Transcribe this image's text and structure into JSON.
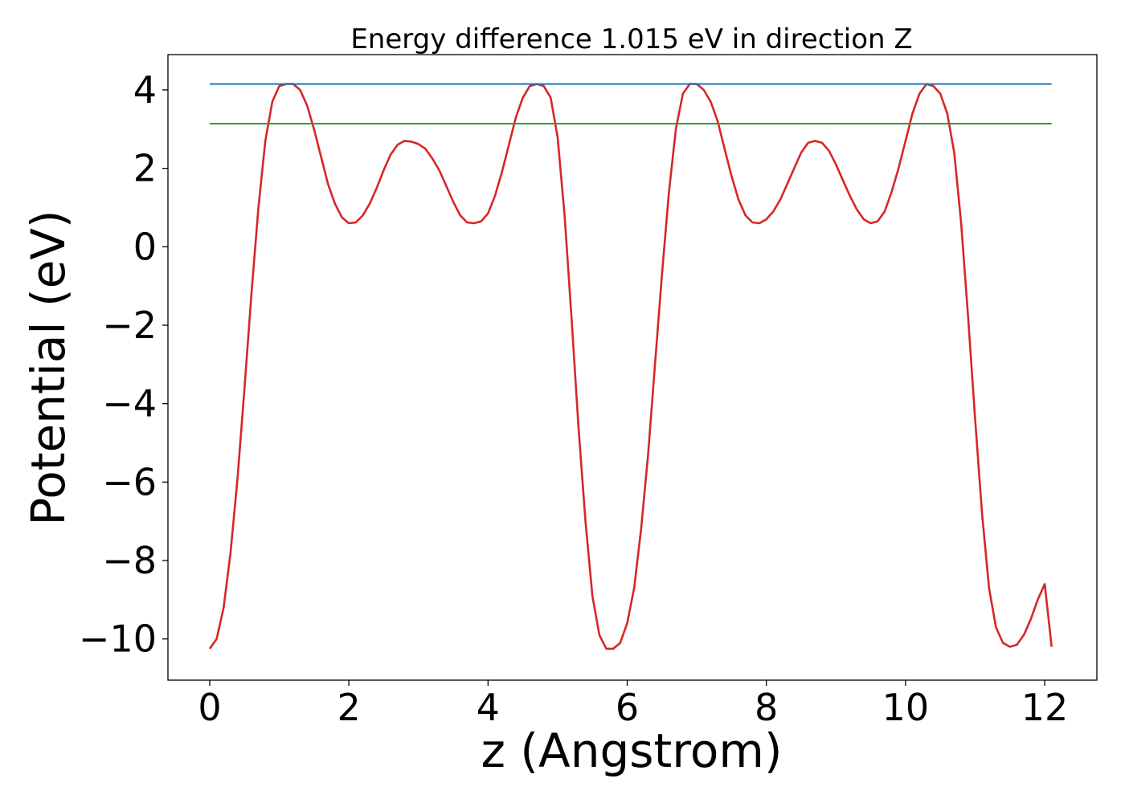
{
  "chart_data": {
    "type": "line",
    "title": "Energy difference 1.015 eV in direction Z",
    "xlabel": "z (Angstrom)",
    "ylabel": "Potential (eV)",
    "xlim": [
      -0.6,
      12.75
    ],
    "ylim": [
      -11.05,
      4.9
    ],
    "xticks": [
      0,
      2,
      4,
      6,
      8,
      10,
      12
    ],
    "xtick_labels": [
      "0",
      "2",
      "4",
      "6",
      "8",
      "10",
      "12"
    ],
    "yticks": [
      -10,
      -8,
      -6,
      -4,
      -2,
      0,
      2,
      4
    ],
    "ytick_labels": [
      "−10",
      "−8",
      "−6",
      "−4",
      "−2",
      "0",
      "2",
      "4"
    ],
    "grid": false,
    "legend": "none",
    "series": [
      {
        "color": "#d62728",
        "x": [
          0.0,
          0.1,
          0.2,
          0.3,
          0.4,
          0.5,
          0.6,
          0.7,
          0.8,
          0.9,
          1.0,
          1.1,
          1.2,
          1.3,
          1.4,
          1.5,
          1.6,
          1.7,
          1.8,
          1.9,
          2.0,
          2.1,
          2.2,
          2.3,
          2.4,
          2.5,
          2.6,
          2.7,
          2.8,
          2.9,
          3.0,
          3.1,
          3.2,
          3.3,
          3.4,
          3.5,
          3.6,
          3.7,
          3.8,
          3.9,
          4.0,
          4.1,
          4.2,
          4.3,
          4.4,
          4.5,
          4.6,
          4.7,
          4.8,
          4.9,
          5.0,
          5.1,
          5.2,
          5.3,
          5.4,
          5.5,
          5.6,
          5.7,
          5.8,
          5.9,
          6.0,
          6.1,
          6.2,
          6.3,
          6.4,
          6.5,
          6.6,
          6.7,
          6.8,
          6.9,
          7.0,
          7.1,
          7.2,
          7.3,
          7.4,
          7.5,
          7.6,
          7.7,
          7.8,
          7.9,
          8.0,
          8.1,
          8.2,
          8.3,
          8.4,
          8.5,
          8.6,
          8.7,
          8.8,
          8.9,
          9.0,
          9.1,
          9.2,
          9.3,
          9.4,
          9.5,
          9.6,
          9.7,
          9.8,
          9.9,
          10.0,
          10.1,
          10.2,
          10.3,
          10.4,
          10.5,
          10.6,
          10.7,
          10.8,
          10.9,
          11.0,
          11.1,
          11.2,
          11.3,
          11.4,
          11.5,
          11.6,
          11.7,
          11.8,
          11.9,
          12.0,
          12.1
        ],
        "y": [
          -10.25,
          -10.0,
          -9.2,
          -7.8,
          -5.9,
          -3.6,
          -1.2,
          1.0,
          2.7,
          3.7,
          4.1,
          4.15,
          4.15,
          4.0,
          3.6,
          3.0,
          2.3,
          1.6,
          1.1,
          0.75,
          0.6,
          0.62,
          0.8,
          1.1,
          1.5,
          1.95,
          2.35,
          2.6,
          2.7,
          2.68,
          2.62,
          2.5,
          2.25,
          1.95,
          1.55,
          1.15,
          0.8,
          0.62,
          0.6,
          0.65,
          0.85,
          1.3,
          1.9,
          2.6,
          3.3,
          3.8,
          4.1,
          4.15,
          4.1,
          3.8,
          2.8,
          0.8,
          -1.8,
          -4.6,
          -7.0,
          -8.9,
          -9.9,
          -10.25,
          -10.25,
          -10.1,
          -9.6,
          -8.7,
          -7.2,
          -5.3,
          -3.0,
          -0.7,
          1.4,
          3.0,
          3.9,
          4.15,
          4.15,
          4.0,
          3.7,
          3.2,
          2.5,
          1.8,
          1.2,
          0.8,
          0.62,
          0.6,
          0.7,
          0.9,
          1.2,
          1.6,
          2.0,
          2.4,
          2.65,
          2.7,
          2.65,
          2.45,
          2.1,
          1.7,
          1.3,
          0.95,
          0.7,
          0.6,
          0.65,
          0.9,
          1.4,
          2.0,
          2.7,
          3.4,
          3.9,
          4.15,
          4.1,
          3.9,
          3.4,
          2.4,
          0.6,
          -1.8,
          -4.4,
          -6.8,
          -8.7,
          -9.7,
          -10.1,
          -10.2,
          -10.15,
          -9.9,
          -9.5,
          -9.0,
          -8.6,
          -10.2
        ]
      },
      {
        "color": "#1f77b4",
        "x": [
          0.0,
          12.1
        ],
        "y": [
          4.15,
          4.15
        ]
      },
      {
        "color": "#2ca02c",
        "x": [
          0.0,
          12.1
        ],
        "y": [
          3.14,
          3.14
        ]
      }
    ]
  }
}
